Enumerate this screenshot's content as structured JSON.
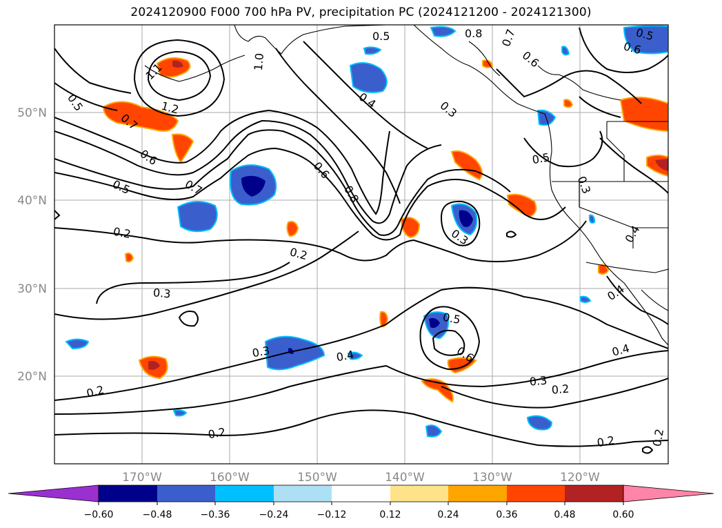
{
  "title": "2024120900 F000 700 hPa PV, precipitation PC (2024121200 - 2024121300)",
  "axes": {
    "lat_ticks": [
      "50°N",
      "40°N",
      "30°N",
      "20°N"
    ],
    "lon_ticks": [
      "170°W",
      "160°W",
      "150°W",
      "140°W",
      "130°W",
      "120°W"
    ]
  },
  "contour_labels": [
    "0.5",
    "0.8",
    "0.7",
    "0.6",
    "1.0",
    "1.1",
    "1.2",
    "0.5",
    "0.7",
    "0.6",
    "0.5",
    "0.7",
    "0.4",
    "0.3",
    "0.6",
    "0.8",
    "0.2",
    "0.2",
    "0.3",
    "0.3",
    "0.4",
    "0.5",
    "0.6",
    "0.3",
    "0.2",
    "0.2",
    "0.2",
    "0.4",
    "0.2",
    "0.2",
    "0.5",
    "0.3",
    "0.3",
    "0.4",
    "0.6",
    "0.5",
    "0.4"
  ],
  "colorbar": {
    "colors": [
      "#9b30d0",
      "#00008b",
      "#3a5fcd",
      "#00bfff",
      "#aee0f5",
      "#ffffff",
      "#ffe38a",
      "#ffa500",
      "#ff4500",
      "#b22222",
      "#ff85a8"
    ],
    "tick_labels": [
      "−0.60",
      "−0.48",
      "−0.36",
      "−0.24",
      "−0.12",
      "0.12",
      "0.24",
      "0.36",
      "0.48",
      "0.60"
    ]
  }
}
